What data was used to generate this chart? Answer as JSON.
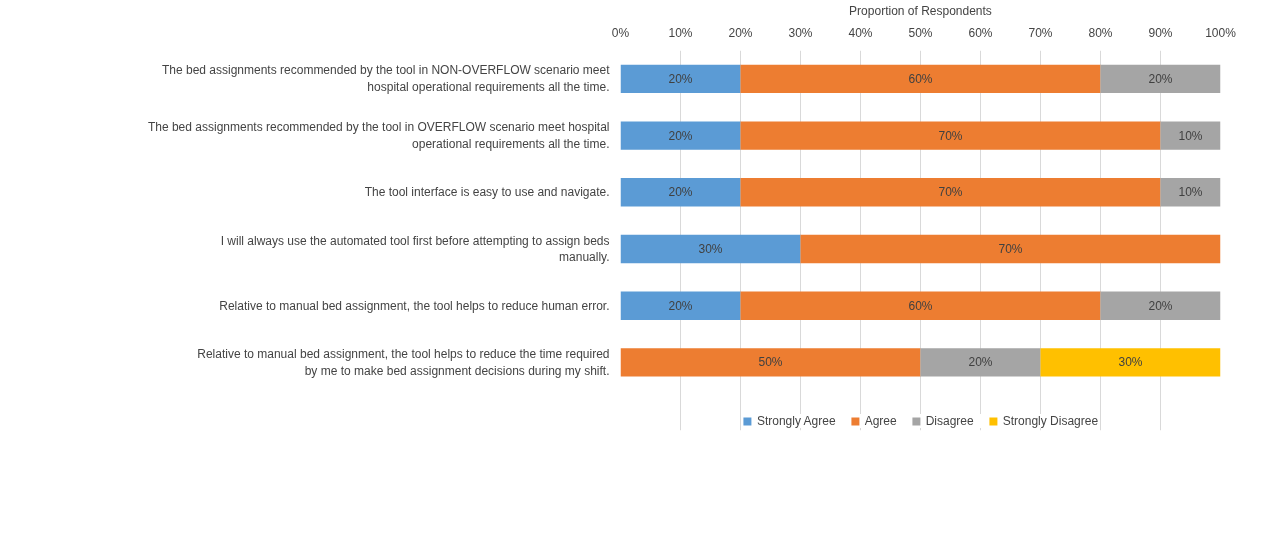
{
  "chart_data": {
    "type": "bar",
    "orientation": "horizontal",
    "stacked": true,
    "xlabel": "Proportion of Respondents",
    "categories": [
      "The bed assignments recommended by the tool in NON-OVERFLOW scenario meet hospital operational requirements all the time.",
      "The bed assignments recommended by the tool in OVERFLOW scenario meet hospital operational requirements all the time.",
      "The tool interface is easy to use and navigate.",
      "I will always use the automated tool first before attempting to assign beds manually.",
      "Relative to manual bed assignment, the tool helps to reduce human error.",
      "Relative to manual bed assignment, the tool helps to reduce the time required by me to make bed assignment decisions during my shift."
    ],
    "series": [
      {
        "name": "Strongly Agree",
        "color": "#5b9bd5",
        "values": [
          20,
          20,
          20,
          30,
          20,
          null
        ],
        "value_labels": [
          "20%",
          "20%",
          "20%",
          "30%",
          "20%",
          null
        ]
      },
      {
        "name": "Agree",
        "color": "#ed7d31",
        "values": [
          60,
          70,
          70,
          70,
          60,
          50
        ],
        "value_labels": [
          "60%",
          "70%",
          "70%",
          "70%",
          "60%",
          "50%"
        ]
      },
      {
        "name": "Disagree",
        "color": "#a5a5a5",
        "values": [
          20,
          10,
          10,
          null,
          20,
          20
        ],
        "value_labels": [
          "20%",
          "10%",
          "10%",
          null,
          "20%",
          "20%"
        ]
      },
      {
        "name": "Strongly Disagree",
        "color": "#ffc000",
        "values": [
          null,
          null,
          null,
          null,
          null,
          30
        ],
        "value_labels": [
          null,
          null,
          null,
          null,
          null,
          "30%"
        ]
      }
    ],
    "xlim": [
      0,
      100
    ],
    "xticks": [
      {
        "value": 0,
        "label": "0%"
      },
      {
        "value": 10,
        "label": "10%"
      },
      {
        "value": 20,
        "label": "20%"
      },
      {
        "value": 30,
        "label": "30%"
      },
      {
        "value": 40,
        "label": "40%"
      },
      {
        "value": 50,
        "label": "50%"
      },
      {
        "value": 60,
        "label": "60%"
      },
      {
        "value": 70,
        "label": "70%"
      },
      {
        "value": 80,
        "label": "80%"
      },
      {
        "value": 90,
        "label": "90%"
      },
      {
        "value": 100,
        "label": "100%"
      }
    ],
    "grid": "x",
    "legend": "bottom"
  }
}
